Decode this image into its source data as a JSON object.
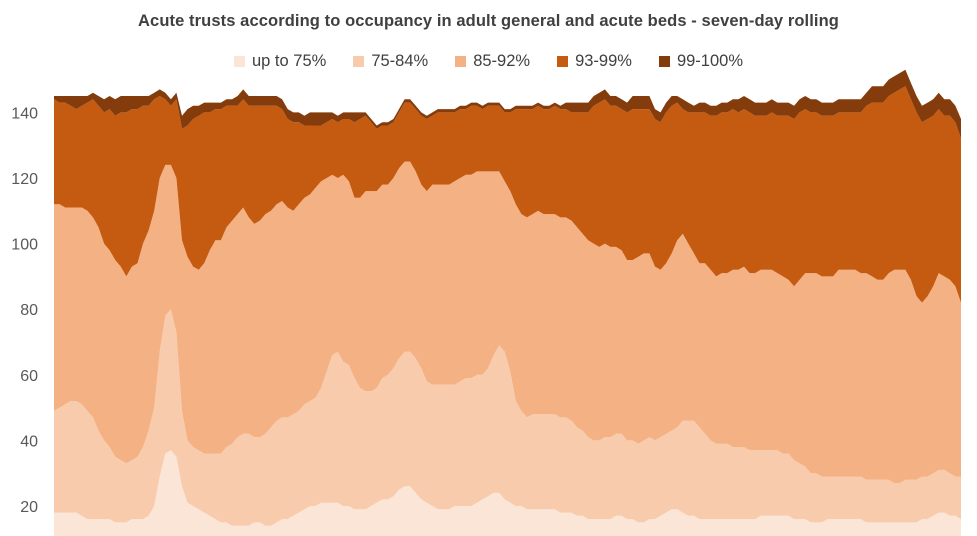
{
  "chart_data": {
    "type": "area",
    "stacked": true,
    "title": "Acute trusts according to occupancy in adult general and acute beds - seven-day rolling",
    "xlabel": "",
    "ylabel": "",
    "ylim": [
      10,
      145
    ],
    "yticks": [
      20,
      40,
      60,
      80,
      100,
      120,
      140
    ],
    "grid": false,
    "legend_position": "top",
    "series": [
      {
        "name": "up to 75%",
        "color": "#fbe5d6",
        "values": [
          18,
          18,
          18,
          18,
          18,
          17,
          16,
          16,
          16,
          16,
          16,
          15,
          15,
          15,
          16,
          16,
          16,
          17,
          20,
          29,
          36,
          37,
          35,
          26,
          21,
          20,
          19,
          18,
          17,
          16,
          15,
          15,
          14,
          14,
          14,
          14,
          15,
          15,
          14,
          14,
          15,
          16,
          16,
          17,
          18,
          19,
          20,
          20,
          21,
          21,
          21,
          21,
          20,
          20,
          19,
          19,
          19,
          20,
          21,
          22,
          22,
          23,
          25,
          26,
          26,
          24,
          22,
          21,
          20,
          19,
          19,
          19,
          20,
          20,
          20,
          20,
          21,
          22,
          23,
          24,
          24,
          22,
          21,
          20,
          20,
          19,
          19,
          19,
          19,
          19,
          19,
          18,
          18,
          18,
          17,
          17,
          16,
          16,
          16,
          16,
          16,
          17,
          17,
          16,
          16,
          15,
          15,
          16,
          16,
          17,
          18,
          19,
          19,
          18,
          17,
          17,
          16,
          16,
          16,
          16,
          16,
          16,
          16,
          16,
          16,
          16,
          16,
          17,
          17,
          17,
          17,
          17,
          17,
          16,
          16,
          16,
          15,
          15,
          15,
          16,
          16,
          16,
          16,
          16,
          16,
          16,
          15,
          15,
          15,
          15,
          15,
          15,
          15,
          15,
          15,
          15,
          16,
          16,
          17,
          18,
          18,
          17,
          17,
          16
        ]
      },
      {
        "name": "75-84%",
        "color": "#f8cbad",
        "values": [
          31,
          32,
          33,
          34,
          34,
          34,
          33,
          31,
          27,
          24,
          22,
          20,
          19,
          18,
          18,
          19,
          22,
          26,
          30,
          38,
          42,
          43,
          38,
          23,
          19,
          18,
          18,
          18,
          19,
          20,
          21,
          23,
          25,
          27,
          28,
          28,
          26,
          26,
          28,
          30,
          31,
          31,
          31,
          31,
          31,
          32,
          32,
          33,
          35,
          40,
          45,
          46,
          44,
          43,
          40,
          37,
          36,
          35,
          35,
          37,
          38,
          39,
          40,
          41,
          41,
          41,
          40,
          37,
          37,
          38,
          38,
          38,
          37,
          38,
          39,
          39,
          39,
          38,
          39,
          42,
          45,
          45,
          40,
          32,
          29,
          28,
          29,
          29,
          29,
          29,
          29,
          29,
          29,
          28,
          27,
          26,
          25,
          24,
          24,
          25,
          25,
          25,
          25,
          24,
          24,
          24,
          25,
          25,
          24,
          24,
          24,
          24,
          25,
          28,
          29,
          29,
          28,
          26,
          24,
          23,
          23,
          23,
          22,
          22,
          22,
          21,
          21,
          20,
          20,
          20,
          20,
          19,
          19,
          18,
          17,
          16,
          15,
          15,
          14,
          13,
          13,
          13,
          13,
          13,
          13,
          13,
          13,
          13,
          13,
          13,
          13,
          12,
          12,
          13,
          13,
          13,
          13,
          13,
          13,
          13,
          13,
          13,
          12,
          13
        ]
      },
      {
        "name": "85-92%",
        "color": "#f4b183",
        "values": [
          63,
          62,
          60,
          59,
          59,
          60,
          61,
          61,
          62,
          60,
          60,
          60,
          59,
          57,
          59,
          59,
          62,
          61,
          60,
          53,
          46,
          44,
          47,
          52,
          56,
          55,
          55,
          58,
          62,
          65,
          65,
          67,
          68,
          68,
          69,
          66,
          65,
          66,
          67,
          66,
          66,
          66,
          64,
          62,
          63,
          63,
          63,
          64,
          63,
          59,
          55,
          53,
          57,
          56,
          55,
          58,
          61,
          61,
          60,
          59,
          58,
          58,
          58,
          58,
          58,
          57,
          56,
          58,
          61,
          61,
          61,
          61,
          62,
          62,
          62,
          62,
          62,
          62,
          60,
          56,
          53,
          52,
          55,
          60,
          60,
          61,
          61,
          62,
          61,
          61,
          61,
          61,
          61,
          61,
          61,
          60,
          60,
          60,
          59,
          59,
          58,
          57,
          56,
          55,
          55,
          57,
          57,
          56,
          53,
          51,
          52,
          54,
          57,
          57,
          54,
          51,
          50,
          52,
          52,
          51,
          52,
          52,
          54,
          54,
          55,
          54,
          54,
          55,
          55,
          55,
          54,
          54,
          53,
          53,
          56,
          59,
          61,
          61,
          61,
          61,
          61,
          63,
          63,
          63,
          63,
          62,
          63,
          62,
          61,
          61,
          63,
          65,
          65,
          64,
          61,
          56,
          53,
          55,
          57,
          60,
          59,
          59,
          58,
          53
        ]
      },
      {
        "name": "93-99%",
        "color": "#c55a11",
        "values": [
          32,
          31,
          32,
          31,
          30,
          31,
          33,
          36,
          37,
          40,
          43,
          44,
          47,
          50,
          48,
          47,
          42,
          38,
          34,
          25,
          20,
          18,
          24,
          34,
          40,
          45,
          47,
          46,
          42,
          40,
          40,
          37,
          35,
          33,
          33,
          34,
          36,
          35,
          33,
          32,
          30,
          28,
          27,
          27,
          25,
          22,
          21,
          19,
          17,
          17,
          17,
          17,
          17,
          19,
          23,
          24,
          23,
          21,
          19,
          18,
          18,
          17,
          17,
          18,
          18,
          19,
          21,
          22,
          21,
          22,
          22,
          22,
          21,
          21,
          20,
          21,
          20,
          19,
          20,
          20,
          20,
          21,
          24,
          29,
          32,
          33,
          32,
          32,
          32,
          32,
          33,
          33,
          33,
          33,
          35,
          37,
          39,
          42,
          44,
          44,
          43,
          43,
          43,
          45,
          46,
          45,
          44,
          44,
          45,
          45,
          46,
          45,
          42,
          38,
          40,
          43,
          46,
          46,
          47,
          49,
          49,
          49,
          49,
          48,
          48,
          49,
          48,
          47,
          47,
          48,
          48,
          49,
          50,
          51,
          51,
          50,
          49,
          49,
          49,
          49,
          49,
          48,
          48,
          48,
          48,
          49,
          51,
          53,
          54,
          54,
          54,
          54,
          55,
          56,
          55,
          56,
          55,
          54,
          52,
          50,
          49,
          50,
          50,
          50
        ]
      },
      {
        "name": "99-100%",
        "color": "#843c0c",
        "values": [
          1,
          2,
          2,
          3,
          4,
          3,
          2,
          2,
          3,
          4,
          4,
          5,
          5,
          5,
          4,
          4,
          3,
          3,
          2,
          2,
          2,
          2,
          2,
          4,
          5,
          4,
          3,
          3,
          3,
          2,
          2,
          2,
          2,
          3,
          3,
          3,
          3,
          3,
          3,
          3,
          3,
          3,
          3,
          3,
          3,
          3,
          4,
          4,
          4,
          3,
          2,
          2,
          2,
          2,
          3,
          2,
          1,
          1,
          1,
          1,
          1,
          1,
          1,
          1,
          1,
          1,
          1,
          1,
          1,
          1,
          1,
          1,
          1,
          1,
          1,
          1,
          1,
          1,
          1,
          1,
          1,
          1,
          1,
          1,
          1,
          1,
          1,
          1,
          1,
          1,
          1,
          1,
          2,
          3,
          3,
          3,
          3,
          3,
          3,
          3,
          3,
          3,
          3,
          3,
          4,
          4,
          4,
          4,
          3,
          3,
          3,
          3,
          2,
          3,
          3,
          2,
          3,
          3,
          3,
          3,
          3,
          3,
          3,
          4,
          4,
          4,
          4,
          4,
          4,
          4,
          4,
          4,
          4,
          4,
          4,
          4,
          4,
          4,
          4,
          4,
          4,
          4,
          4,
          4,
          4,
          4,
          4,
          5,
          5,
          5,
          5,
          5,
          5,
          5,
          5,
          5,
          5,
          5,
          5,
          5,
          5,
          5,
          5,
          6,
          7
        ]
      }
    ]
  }
}
